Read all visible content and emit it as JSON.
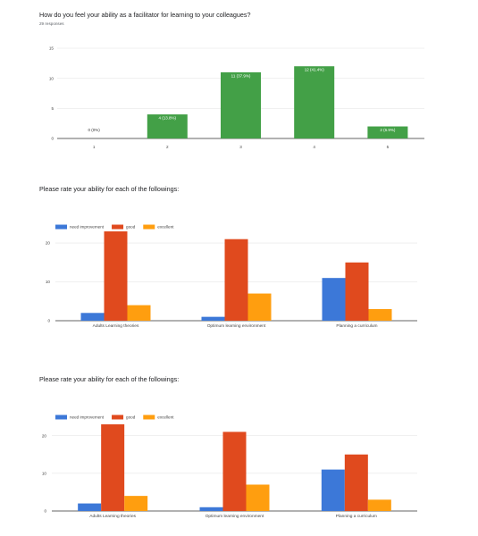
{
  "chart_data": [
    {
      "type": "bar",
      "title": "How do you feel your ability as a facilitator for learning to your colleagues?",
      "subtitle": "29 responses",
      "categories": [
        "1",
        "2",
        "3",
        "4",
        "5"
      ],
      "values": [
        0,
        4,
        11,
        12,
        2
      ],
      "data_labels": [
        "0 (0%)",
        "4 (13.8%)",
        "11 (37.9%)",
        "12 (41.4%)",
        "2 (6.9%)"
      ],
      "color": "#43a047",
      "yticks": [
        "0",
        "5",
        "10",
        "15"
      ],
      "ylim": [
        0,
        15
      ],
      "grid": true
    },
    {
      "type": "bar",
      "title": "Please rate your ability for each of the followings:",
      "categories": [
        "Adults Learning theories",
        "Optimum learning environment",
        "Planning a curriculum"
      ],
      "series": [
        {
          "name": "need improvement",
          "values": [
            2,
            1,
            11
          ],
          "color": "#3c78d8"
        },
        {
          "name": "good",
          "values": [
            23,
            21,
            15
          ],
          "color": "#e04a1e"
        },
        {
          "name": "excellent",
          "values": [
            4,
            7,
            3
          ],
          "color": "#ff9e0f"
        }
      ],
      "yticks": [
        "0",
        "10",
        "20"
      ],
      "ylim": [
        0,
        23
      ],
      "legend": "top-left",
      "grid": true
    },
    {
      "type": "bar",
      "title": "Please rate your ability for each of the followings:",
      "categories": [
        "Adults Learning theories",
        "Optimum learning environment",
        "Planning a curriculum"
      ],
      "series": [
        {
          "name": "need improvement",
          "values": [
            2,
            1,
            11
          ],
          "color": "#3c78d8"
        },
        {
          "name": "good",
          "values": [
            23,
            21,
            15
          ],
          "color": "#e04a1e"
        },
        {
          "name": "excellent",
          "values": [
            4,
            7,
            3
          ],
          "color": "#ff9e0f"
        }
      ],
      "yticks": [
        "0",
        "10",
        "20"
      ],
      "ylim": [
        0,
        23
      ],
      "legend": "top-left",
      "grid": true
    }
  ]
}
